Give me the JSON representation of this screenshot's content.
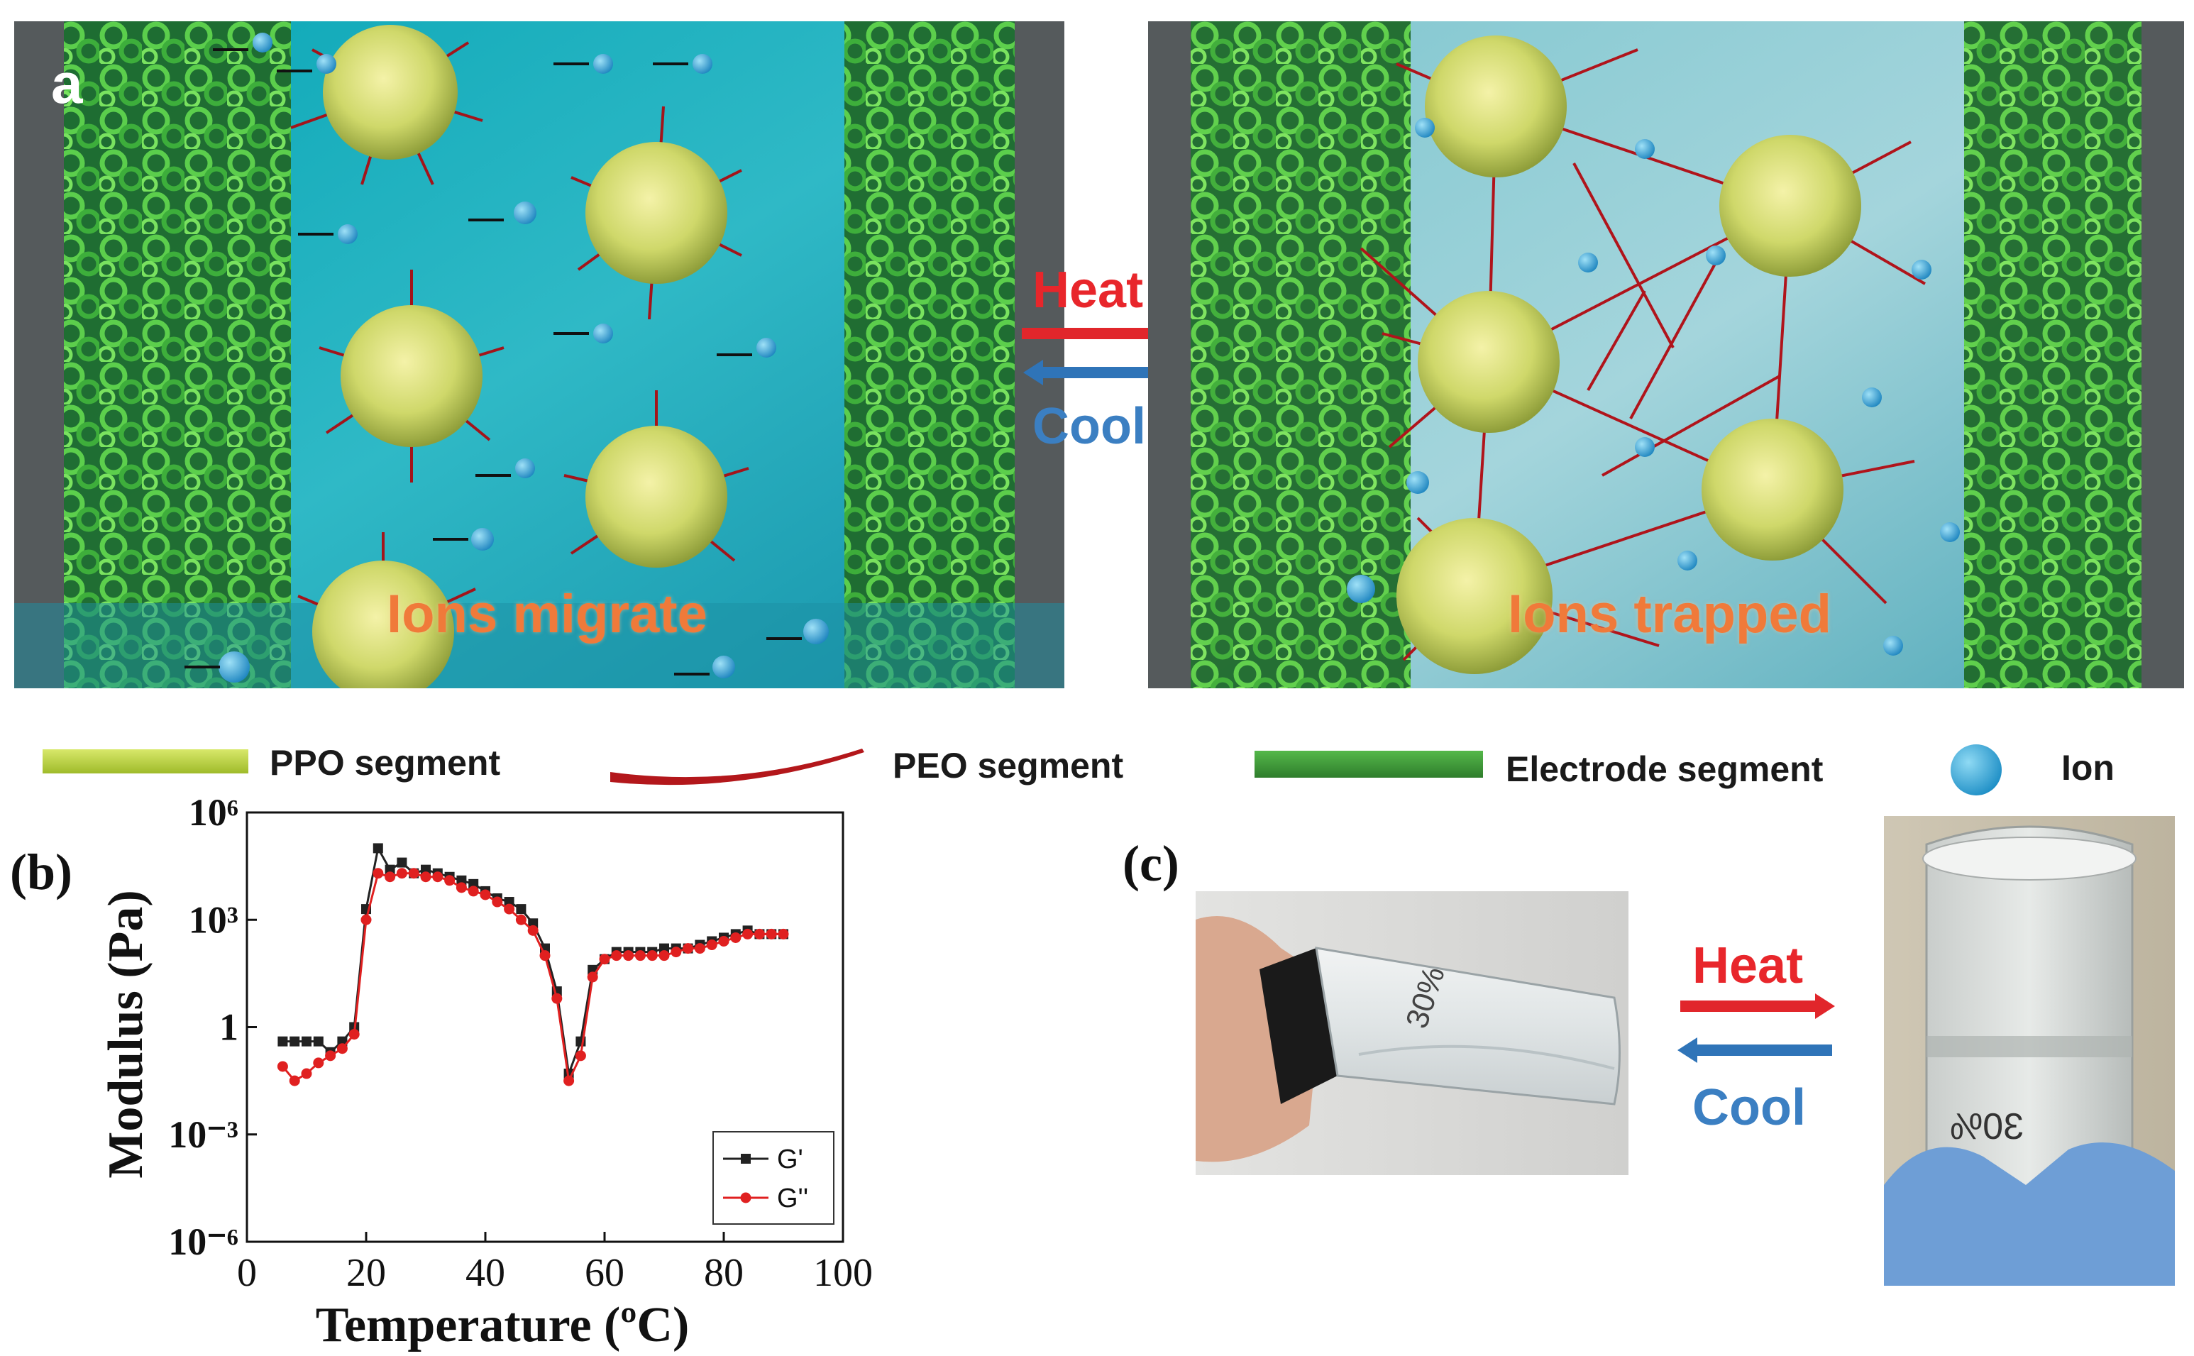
{
  "panel_a": {
    "label": "a",
    "left_caption": "Ions migrate",
    "right_caption": "Ions trapped",
    "heat_label": "Heat",
    "cool_label": "Cool"
  },
  "legend": {
    "items": [
      {
        "label": "PPO segment",
        "color": "#b8cf3a"
      },
      {
        "label": "PEO segment",
        "color": "#b3171b"
      },
      {
        "label": "Electrode segment",
        "color": "#3f9c35"
      },
      {
        "label": "Ion",
        "color": "#2aa0d0"
      }
    ]
  },
  "panel_b": {
    "label": "(b)",
    "chart_data": {
      "type": "line",
      "xlabel": "Temperature (ºC)",
      "ylabel": "Modulus (Pa)",
      "xlim": [
        0,
        100
      ],
      "ylim_log10": [
        -6,
        6
      ],
      "x_ticks": [
        "0",
        "20",
        "40",
        "60",
        "80",
        "100"
      ],
      "y_ticks_log10": [
        -6,
        -3,
        0,
        3,
        6
      ],
      "y_tick_labels": [
        "10⁻⁶",
        "10⁻³",
        "1",
        "10³",
        "10⁶"
      ],
      "legend_position": "bottom-right",
      "series": [
        {
          "name": "G'",
          "color": "#222222",
          "marker": "square",
          "x": [
            6,
            8,
            10,
            12,
            14,
            16,
            18,
            20,
            22,
            24,
            26,
            28,
            30,
            32,
            34,
            36,
            38,
            40,
            42,
            44,
            46,
            48,
            50,
            52,
            54,
            56,
            58,
            60,
            62,
            64,
            66,
            68,
            70,
            72,
            74,
            76,
            78,
            80,
            82,
            84,
            86,
            88,
            90
          ],
          "log10_y": [
            -0.4,
            -0.4,
            -0.4,
            -0.4,
            -0.7,
            -0.4,
            0.0,
            3.3,
            5.0,
            4.4,
            4.6,
            4.3,
            4.4,
            4.3,
            4.2,
            4.1,
            4.0,
            3.8,
            3.6,
            3.5,
            3.3,
            2.9,
            2.2,
            1.0,
            -1.3,
            -0.4,
            1.6,
            1.9,
            2.1,
            2.1,
            2.1,
            2.1,
            2.2,
            2.2,
            2.2,
            2.3,
            2.4,
            2.5,
            2.6,
            2.7,
            2.6,
            2.6,
            2.6
          ]
        },
        {
          "name": "G''",
          "color": "#e02020",
          "marker": "circle",
          "x": [
            6,
            8,
            10,
            12,
            14,
            16,
            18,
            20,
            22,
            24,
            26,
            28,
            30,
            32,
            34,
            36,
            38,
            40,
            42,
            44,
            46,
            48,
            50,
            52,
            54,
            56,
            58,
            60,
            62,
            64,
            66,
            68,
            70,
            72,
            74,
            76,
            78,
            80,
            82,
            84,
            86,
            88,
            90
          ],
          "log10_y": [
            -1.1,
            -1.5,
            -1.3,
            -1.0,
            -0.8,
            -0.6,
            -0.2,
            3.0,
            4.3,
            4.2,
            4.3,
            4.3,
            4.2,
            4.2,
            4.1,
            3.9,
            3.8,
            3.7,
            3.5,
            3.3,
            3.0,
            2.7,
            2.0,
            0.8,
            -1.5,
            -0.8,
            1.4,
            1.9,
            2.0,
            2.0,
            2.0,
            2.0,
            2.0,
            2.1,
            2.2,
            2.2,
            2.3,
            2.4,
            2.5,
            2.6,
            2.6,
            2.6,
            2.6
          ]
        }
      ]
    }
  },
  "panel_c": {
    "label": "(c)",
    "vial_text": "30%",
    "vial_text_inverted": "30%",
    "heat_label": "Heat",
    "cool_label": "Cool"
  }
}
